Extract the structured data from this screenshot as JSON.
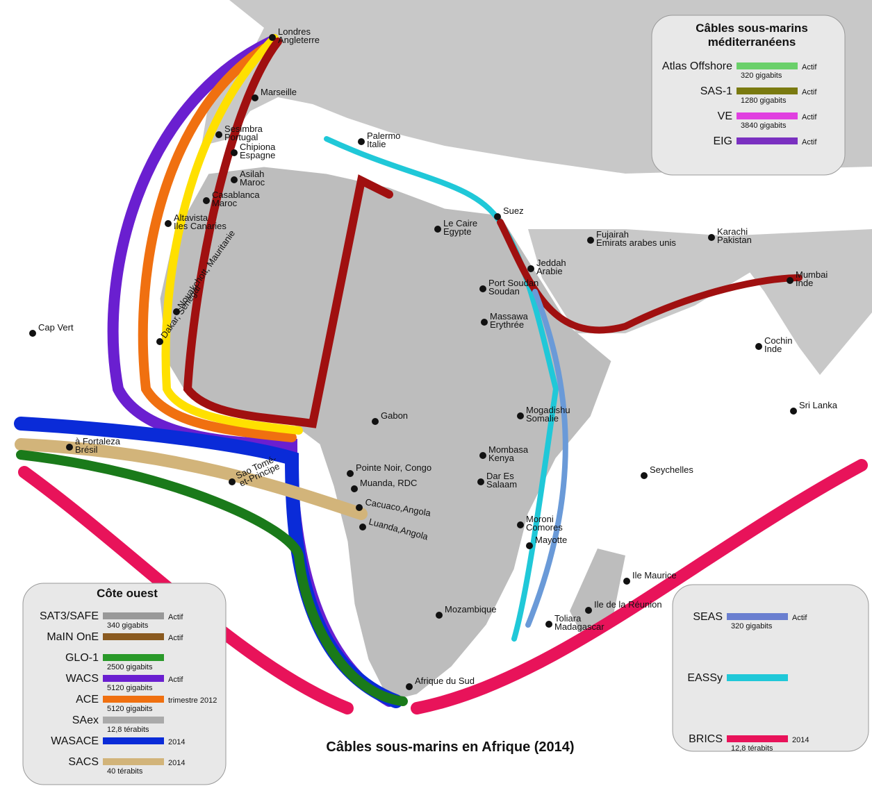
{
  "title": "Câbles sous-marins en Afrique (2014)",
  "places": [
    {
      "name": "Londres",
      "country": "Angleterre"
    },
    {
      "name": "Marseille"
    },
    {
      "name": "Sesimbra",
      "country": "Portugal"
    },
    {
      "name": "Chipiona",
      "country": "Espagne"
    },
    {
      "name": "Palermo",
      "country": "Italie"
    },
    {
      "name": "Asilah",
      "country": "Maroc"
    },
    {
      "name": "Casablanca",
      "country": "Maroc"
    },
    {
      "name": "Le Caire",
      "country": "Egypte"
    },
    {
      "name": "Suez"
    },
    {
      "name": "Altavista",
      "country": "Iles Canaries"
    },
    {
      "name": "Nouakchott, Mauritanie"
    },
    {
      "name": "Dakar, Sénégal"
    },
    {
      "name": "Cap Vert"
    },
    {
      "name": "Fujairah",
      "country": "Emirats arabes unis"
    },
    {
      "name": "Karachi",
      "country": "Pakistan"
    },
    {
      "name": "Jeddah",
      "country": "Arabie"
    },
    {
      "name": "Port Soudan",
      "country": "Soudan"
    },
    {
      "name": "Mumbai",
      "country": "Inde"
    },
    {
      "name": "Massawa",
      "country": "Erythrée"
    },
    {
      "name": "Cochin",
      "country": "Inde"
    },
    {
      "name": "Mogadishu",
      "country": "Somalie"
    },
    {
      "name": "Gabon"
    },
    {
      "name": "à Fortaleza",
      "country": "Brésil"
    },
    {
      "name": "Sao Tomé-",
      "country": "et-Principe"
    },
    {
      "name": "Pointe Noir, Congo"
    },
    {
      "name": "Muanda, RDC"
    },
    {
      "name": "Cacuaco,Angola"
    },
    {
      "name": "Luanda,Angola"
    },
    {
      "name": "Mombasa",
      "country": "Kenya"
    },
    {
      "name": "Dar Es",
      "country": "Salaam"
    },
    {
      "name": "Seychelles"
    },
    {
      "name": "Moroni",
      "country": "Comores"
    },
    {
      "name": "Mayotte"
    },
    {
      "name": "Ile Maurice"
    },
    {
      "name": "Ile de la Réunion"
    },
    {
      "name": "Mozambique"
    },
    {
      "name": "Toliara",
      "country": "Madagascar"
    },
    {
      "name": "Afrique du Sud"
    },
    {
      "name": "Sri Lanka"
    }
  ],
  "legend_med": {
    "title": "Câbles sous-marins",
    "subtitle": "méditerranéens",
    "entries": [
      {
        "name": "Atlas Offshore",
        "capacity": "320 gigabits",
        "status": "Actif"
      },
      {
        "name": "SAS-1",
        "capacity": "1280 gigabits",
        "status": "Actif"
      },
      {
        "name": "VE",
        "capacity": "3840 gigabits",
        "status": "Actif"
      },
      {
        "name": "EIG",
        "status": "Actif"
      }
    ]
  },
  "legend_west": {
    "title": "Côte ouest",
    "entries": [
      {
        "name": "SAT3/SAFE",
        "capacity": "340 gigabits",
        "status": "Actif"
      },
      {
        "name": "MaIN OnE",
        "status": "Actif"
      },
      {
        "name": "GLO-1",
        "capacity": "2500 gigabits"
      },
      {
        "name": "WACS",
        "capacity": "5120 gigabits",
        "status": "Actif"
      },
      {
        "name": "ACE",
        "capacity": "5120 gigabits",
        "status": "trimestre 2012"
      },
      {
        "name": "SAex",
        "capacity": "12,8 térabits"
      },
      {
        "name": "WASACE",
        "status": "2014"
      },
      {
        "name": "SACS",
        "capacity": "40 térabits",
        "status": "2014"
      }
    ]
  },
  "legend_east": {
    "entries": [
      {
        "name": "SEAS",
        "capacity": "320 gigabits",
        "status": "Actif"
      },
      {
        "name": "EASSy"
      },
      {
        "name": "BRICS",
        "capacity": "12,8 térabits",
        "status": "2014"
      }
    ]
  }
}
